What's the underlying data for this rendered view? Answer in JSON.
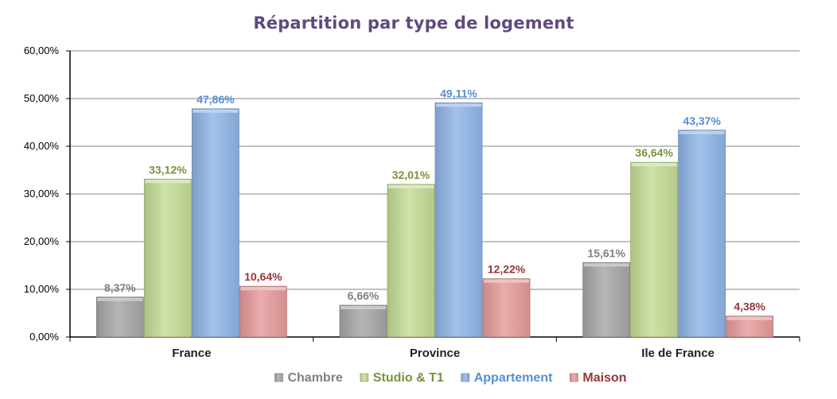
{
  "chart_data": {
    "type": "bar",
    "title": "Répartition par type de logement",
    "xlabel": "",
    "ylabel": "",
    "categories": [
      "France",
      "Province",
      "Ile de France"
    ],
    "ylim": [
      0,
      60
    ],
    "yticks": [
      0,
      10,
      20,
      30,
      40,
      50,
      60
    ],
    "ytick_labels": [
      "0,00%",
      "10,00%",
      "20,00%",
      "30,00%",
      "40,00%",
      "50,00%",
      "60,00%"
    ],
    "grid": true,
    "legend_position": "bottom",
    "series": [
      {
        "name": "Chambre",
        "values": [
          8.37,
          6.66,
          15.61
        ],
        "labels": [
          "8,37%",
          "6,66%",
          "15,61%"
        ],
        "color": "#A6A6A6",
        "label_color": "#808080"
      },
      {
        "name": "Studio & T1",
        "values": [
          33.12,
          32.01,
          36.64
        ],
        "labels": [
          "33,12%",
          "32,01%",
          "36,64%"
        ],
        "color": "#C4DC94",
        "label_color": "#77933C"
      },
      {
        "name": "Appartement",
        "values": [
          47.86,
          49.11,
          43.37
        ],
        "labels": [
          "47,86%",
          "49,11%",
          "43,37%"
        ],
        "color": "#8EB4E6",
        "label_color": "#558ED5"
      },
      {
        "name": "Maison",
        "values": [
          10.64,
          12.22,
          4.38
        ],
        "labels": [
          "10,64%",
          "12,22%",
          "4,38%"
        ],
        "color": "#E59A9A",
        "label_color": "#953735"
      }
    ],
    "colors": {
      "title": "#604A7B",
      "grid": "#868686",
      "axis": "#000000"
    }
  }
}
